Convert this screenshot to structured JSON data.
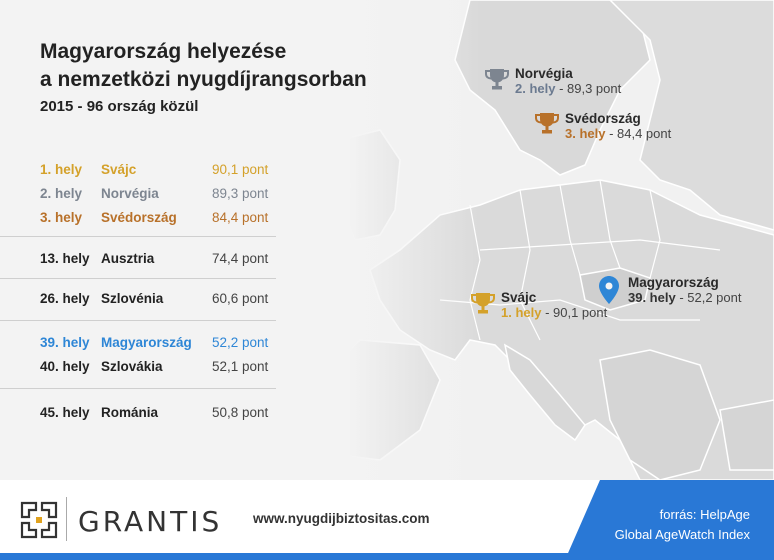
{
  "title": {
    "line1": "Magyarország helyezése",
    "line2": "a nemzetközi nyugdíjrangsorban"
  },
  "subtitle": "2015 - 96 ország közül",
  "ranking": [
    {
      "pos": "1. hely",
      "country": "Svájc",
      "score": "90,1 pont",
      "color": "#d4a12a"
    },
    {
      "pos": "2. hely",
      "country": "Norvégia",
      "score": "89,3 pont",
      "color": "#7d8590"
    },
    {
      "pos": "3. hely",
      "country": "Svédország",
      "score": "84,4 pont",
      "color": "#b8712a"
    },
    {
      "pos": "13. hely",
      "country": "Ausztria",
      "score": "74,4 pont",
      "color": "#222222"
    },
    {
      "pos": "26. hely",
      "country": "Szlovénia",
      "score": "60,6 pont",
      "color": "#222222"
    },
    {
      "pos": "39. hely",
      "country": "Magyarország",
      "score": "52,2  pont",
      "color": "#2e86d6"
    },
    {
      "pos": "40. hely",
      "country": "Szlovákia",
      "score": "52,1 pont",
      "color": "#222222"
    },
    {
      "pos": "45. hely",
      "country": "Románia",
      "score": "50,8 pont",
      "color": "#222222"
    }
  ],
  "map_labels": {
    "norway": {
      "name": "Norvégia",
      "rank": "2. hely",
      "score": " - 89,3 pont",
      "color": "#6b7a90",
      "icon": "trophy-icon"
    },
    "sweden": {
      "name": "Svédország",
      "rank": "3. hely",
      "score": " - 84,4 pont",
      "color": "#b8712a",
      "icon": "trophy-icon"
    },
    "switzerland": {
      "name": "Svájc",
      "rank": "1. hely",
      "score": " - 90,1 pont",
      "color": "#d4a12a",
      "icon": "trophy-icon"
    },
    "hungary": {
      "name": "Magyarország",
      "rank": "39. hely",
      "score": " - 52,2 pont",
      "color": "#2e86d6",
      "icon": "map-pin-icon"
    }
  },
  "footer": {
    "brand": "GRANTIS",
    "website": "www.nyugdijbiztositas.com",
    "source_line1": "forrás: HelpAge",
    "source_line2": "Global AgeWatch Index"
  },
  "colors": {
    "accent_blue": "#2978d6",
    "gold": "#d4a12a",
    "silver": "#7d8590",
    "bronze": "#b8712a"
  }
}
